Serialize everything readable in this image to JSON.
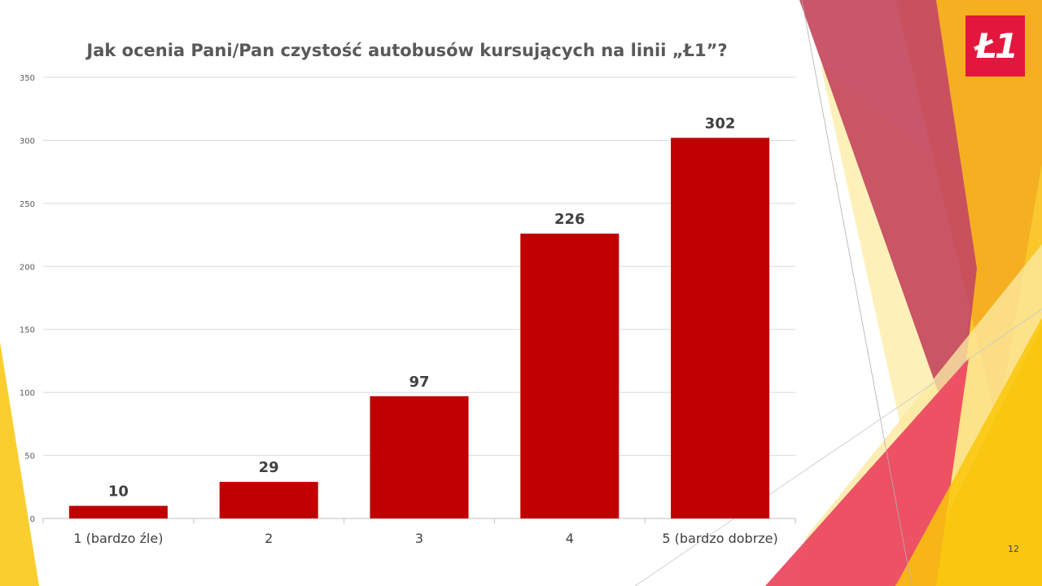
{
  "logo": {
    "text": "Ł1",
    "color": "#e3173e"
  },
  "page_number": "12",
  "chart_data": {
    "type": "bar",
    "title": "Jak ocenia Pani/Pan czystość autobusów kursujących na linii „Ł1”?",
    "categories": [
      "1 (bardzo źle)",
      "2",
      "3",
      "4",
      "5 (bardzo dobrze)"
    ],
    "values": [
      10,
      29,
      97,
      226,
      302
    ],
    "data_labels": [
      "10",
      "29",
      "97",
      "226",
      "302"
    ],
    "xlabel": "",
    "ylabel": "",
    "ylim": [
      0,
      350
    ],
    "yticks": [
      0,
      50,
      100,
      150,
      200,
      250,
      300,
      350
    ],
    "grid": true,
    "legend": "none",
    "bar_color": "#c00000"
  }
}
